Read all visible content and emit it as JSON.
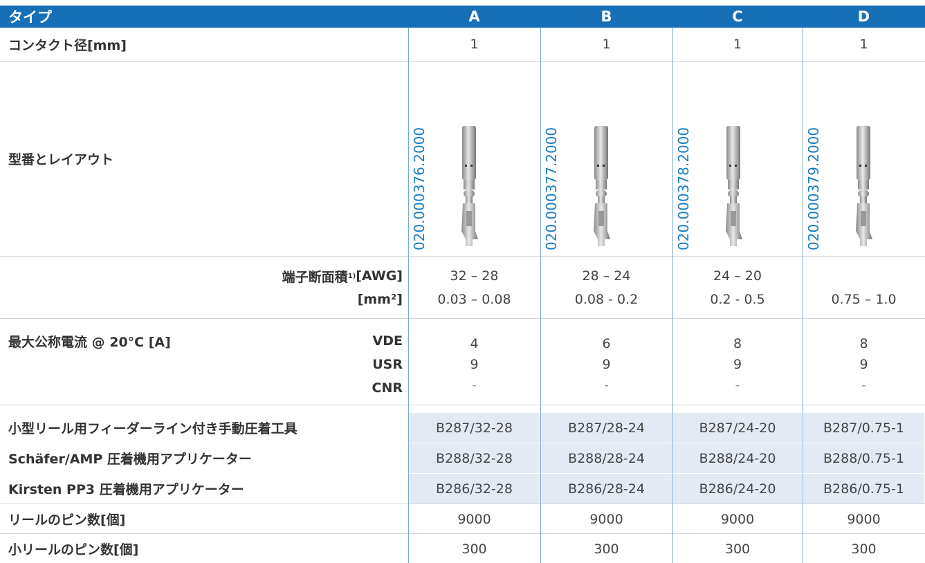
{
  "table": {
    "header": {
      "label": "タイプ",
      "columns": [
        "A",
        "B",
        "C",
        "D"
      ]
    },
    "contact": {
      "label": "コンタクト径[mm]",
      "values": [
        1,
        1,
        1,
        1
      ]
    },
    "layout": {
      "label": "型番とレイアウト",
      "part_numbers": [
        "020.000376.2000",
        "020.000377.2000",
        "020.000378.2000",
        "020.000379.2000"
      ]
    },
    "cross_section": {
      "label": "端子断面積",
      "footnote": "1)",
      "awg_unit": "[AWG]",
      "mm2_unit": "[mm²]",
      "awg": [
        "32 – 28",
        "28 – 24",
        "24 – 20"
      ],
      "mm2": [
        "0.03 – 0.08",
        "0.08 - 0.2",
        "0.2 - 0.5",
        "0.75 – 1.0"
      ]
    },
    "current": {
      "label": "最大公称電流 @ 20°C [A]",
      "standards": [
        "VDE",
        "USR",
        "CNR"
      ],
      "values": [
        [
          4,
          9,
          "-"
        ],
        [
          6,
          9,
          "-"
        ],
        [
          8,
          9,
          "-"
        ],
        [
          8,
          9,
          "-"
        ]
      ]
    },
    "tools": [
      {
        "label": "小型リール用フィーダーライン付き手動圧着工具",
        "values": [
          "B287/32-28",
          "B287/28-24",
          "B287/24-20",
          "B287/0.75-1"
        ]
      },
      {
        "label": "Schäfer/AMP 圧着機用アプリケーター",
        "values": [
          "B288/32-28",
          "B288/28-24",
          "B288/24-20",
          "B288/0.75-1"
        ]
      },
      {
        "label": "Kirsten PP3 圧着機用アプリケーター",
        "values": [
          "B286/32-28",
          "B286/28-24",
          "B286/24-20",
          "B286/0.75-1"
        ]
      }
    ],
    "pins": [
      {
        "label": "リールのピン数[個]",
        "values": [
          9000,
          9000,
          9000,
          9000
        ]
      },
      {
        "label": "小リールのピン数[個]",
        "values": [
          300,
          300,
          300,
          300
        ]
      }
    ]
  }
}
